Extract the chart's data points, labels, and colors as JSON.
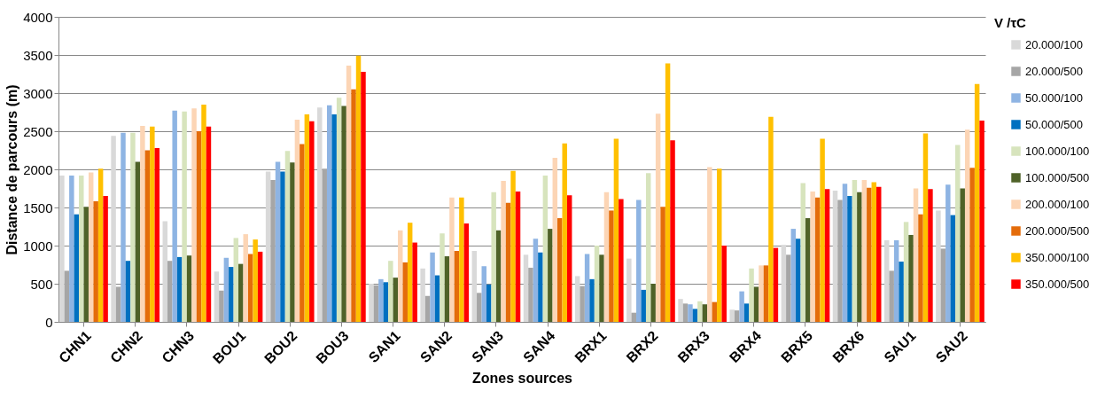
{
  "chart_data": {
    "type": "bar",
    "xlabel": "Zones sources",
    "ylabel": "Distance de parcours (m)",
    "legend_title": "V /τC",
    "legend": "right",
    "grid": "y",
    "ylim": [
      0,
      4000
    ],
    "yticks": [
      0,
      500,
      1000,
      1500,
      2000,
      2500,
      3000,
      3500,
      4000
    ],
    "categories": [
      "CHN1",
      "CHN2",
      "CHN3",
      "BOU1",
      "BOU2",
      "BOU3",
      "SAN1",
      "SAN2",
      "SAN3",
      "SAN4",
      "BRX1",
      "BRX2",
      "BRX3",
      "BRX4",
      "BRX5",
      "BRX6",
      "SAU1",
      "SAU2"
    ],
    "series": [
      {
        "name": "20.000/100",
        "color": "#d9d9d9",
        "values": [
          1920,
          2440,
          1320,
          660,
          1970,
          2810,
          500,
          700,
          930,
          880,
          600,
          830,
          300,
          160,
          1010,
          1720,
          1070,
          1460
        ]
      },
      {
        "name": "20.000/500",
        "color": "#a6a6a6",
        "values": [
          670,
          460,
          800,
          410,
          1860,
          2010,
          480,
          340,
          380,
          710,
          470,
          120,
          240,
          150,
          880,
          1600,
          670,
          960
        ]
      },
      {
        "name": "50.000/100",
        "color": "#8eb4e3",
        "values": [
          1920,
          2480,
          2770,
          840,
          2100,
          2840,
          560,
          910,
          730,
          1090,
          890,
          1600,
          230,
          400,
          1220,
          1810,
          1070,
          1800
        ]
      },
      {
        "name": "50.000/500",
        "color": "#0070c0",
        "values": [
          1410,
          800,
          850,
          720,
          1970,
          2720,
          520,
          610,
          490,
          910,
          560,
          420,
          170,
          240,
          1090,
          1650,
          790,
          1400
        ]
      },
      {
        "name": "100.000/100",
        "color": "#d7e4bd",
        "values": [
          1920,
          2480,
          2760,
          1100,
          2240,
          2940,
          800,
          1160,
          1700,
          1920,
          1000,
          1950,
          270,
          700,
          1820,
          1860,
          1310,
          2320
        ]
      },
      {
        "name": "100.000/500",
        "color": "#4f6228",
        "values": [
          1510,
          2100,
          870,
          760,
          2090,
          2830,
          580,
          860,
          1200,
          1220,
          880,
          500,
          230,
          460,
          1360,
          1700,
          1140,
          1750
        ]
      },
      {
        "name": "200.000/100",
        "color": "#fcd5b5",
        "values": [
          1960,
          2570,
          2800,
          1150,
          2650,
          3360,
          1200,
          1630,
          1850,
          2150,
          1700,
          2730,
          2030,
          740,
          1710,
          1860,
          1750,
          2520
        ]
      },
      {
        "name": "200.000/500",
        "color": "#e46c0a",
        "values": [
          1580,
          2250,
          2500,
          890,
          2330,
          3050,
          780,
          930,
          1560,
          1360,
          1460,
          1510,
          260,
          740,
          1630,
          1760,
          1410,
          2020
        ]
      },
      {
        "name": "350.000/100",
        "color": "#ffc000",
        "values": [
          2010,
          2560,
          2850,
          1080,
          2720,
          3490,
          1300,
          1630,
          1980,
          2340,
          2400,
          3390,
          2010,
          2690,
          2400,
          1830,
          2470,
          3120
        ]
      },
      {
        "name": "350.000/500",
        "color": "#ff0000",
        "values": [
          1650,
          2280,
          2560,
          920,
          2630,
          3280,
          1040,
          1290,
          1710,
          1660,
          1610,
          2380,
          1000,
          970,
          1740,
          1770,
          1740,
          2640
        ]
      }
    ]
  }
}
